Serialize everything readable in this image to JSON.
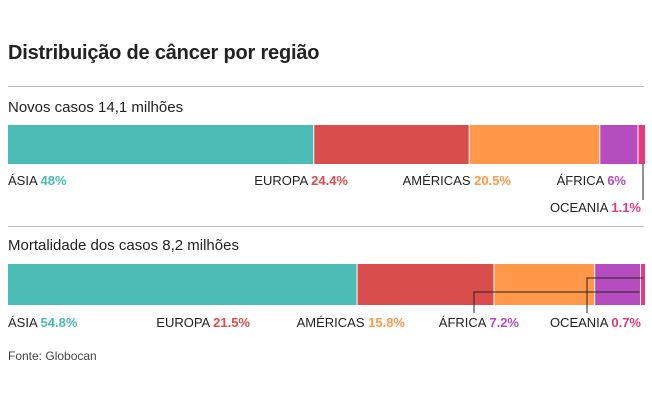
{
  "title": "Distribuição de câncer por região",
  "source": "Fonte: Globocan",
  "colors": {
    "asia": "#4bbcb5",
    "europa": "#d94d4d",
    "americas": "#ff9848",
    "africa": "#b54cc0",
    "oceania": "#e5397b",
    "text": "#222222"
  },
  "chart_data": [
    {
      "type": "bar",
      "orientation": "horizontal-stacked",
      "title": "Novos casos 14,1 milhões",
      "unit": "%",
      "series": [
        {
          "name": "ÁSIA",
          "value": 48,
          "label": "48%",
          "color_key": "asia"
        },
        {
          "name": "EUROPA",
          "value": 24.4,
          "label": "24.4%",
          "color_key": "europa"
        },
        {
          "name": "AMÉRICAS",
          "value": 20.5,
          "label": "20.5%",
          "color_key": "americas"
        },
        {
          "name": "ÁFRICA",
          "value": 6,
          "label": "6%",
          "color_key": "africa"
        },
        {
          "name": "OCEANIA",
          "value": 1.1,
          "label": "1.1%",
          "color_key": "oceania"
        }
      ]
    },
    {
      "type": "bar",
      "orientation": "horizontal-stacked",
      "title": "Mortalidade dos casos 8,2 milhões",
      "unit": "%",
      "series": [
        {
          "name": "ÁSIA",
          "value": 54.8,
          "label": "54.8%",
          "color_key": "asia"
        },
        {
          "name": "EUROPA",
          "value": 21.5,
          "label": "21.5%",
          "color_key": "europa"
        },
        {
          "name": "AMÉRICAS",
          "value": 15.8,
          "label": "15.8%",
          "color_key": "americas"
        },
        {
          "name": "ÁFRICA",
          "value": 7.2,
          "label": "7.2%",
          "color_key": "africa"
        },
        {
          "name": "OCEANIA",
          "value": 0.7,
          "label": "0.7%",
          "color_key": "oceania"
        }
      ]
    }
  ]
}
